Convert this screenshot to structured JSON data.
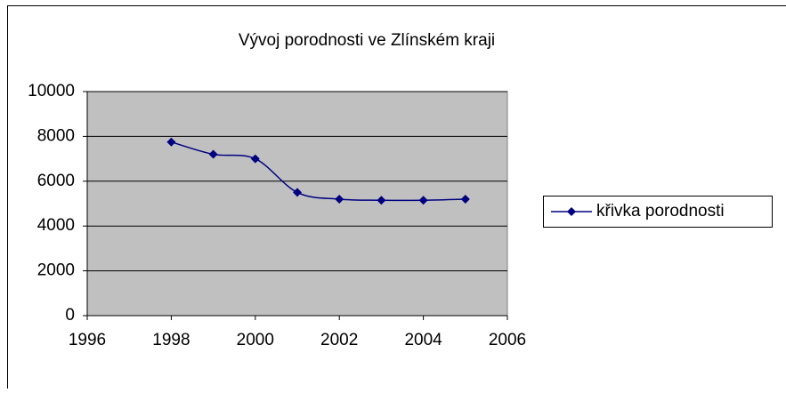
{
  "chart_data": {
    "type": "line",
    "title": "Vývoj porodnosti ve Zlínském kraji",
    "x": [
      1998,
      1999,
      2000,
      2001,
      2002,
      2003,
      2004,
      2005
    ],
    "series": [
      {
        "name": "křivka porodnosti",
        "color": "#000080",
        "values": [
          7750,
          7200,
          7000,
          5500,
          5200,
          5150,
          5150,
          5200
        ]
      }
    ],
    "xlim": [
      1996,
      2006
    ],
    "xticks": [
      1996,
      1998,
      2000,
      2002,
      2004,
      2006
    ],
    "ylim": [
      0,
      10000
    ],
    "yticks": [
      0,
      2000,
      4000,
      6000,
      8000,
      10000
    ],
    "grid": true,
    "smooth": true,
    "legend": "right"
  }
}
